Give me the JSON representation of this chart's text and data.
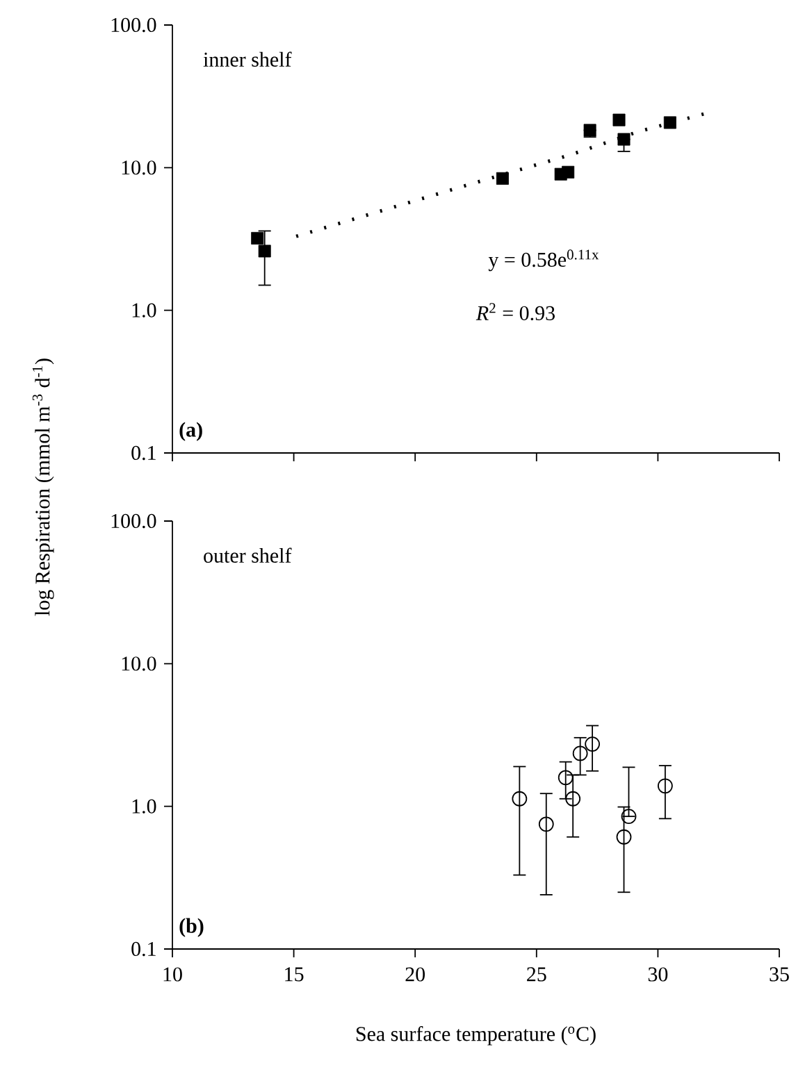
{
  "chart_data": [
    {
      "type": "scatter",
      "annotations": [
        "inner shelf",
        "(a)",
        "y = 0.58e$^{0.11x}$",
        "*R*$^{2}$ = 0.93"
      ],
      "xlim": [
        10,
        35
      ],
      "xticks": [
        10,
        15,
        20,
        25,
        30,
        35
      ],
      "ylim": [
        0.1,
        100
      ],
      "yticks": [
        {
          "value": 0.1,
          "label": "0.1"
        },
        {
          "value": 1,
          "label": "1.0"
        },
        {
          "value": 10,
          "label": "10.0"
        },
        {
          "value": 100,
          "label": "100.0"
        }
      ],
      "log": "y",
      "tick_labels": "y",
      "grid": false,
      "series": [
        {
          "marker": "square",
          "color": "#000000",
          "x": [
            13.5,
            13.8,
            23.6,
            26.0,
            26.3,
            27.2,
            28.4,
            28.6,
            30.5
          ],
          "values": [
            3.2,
            2.6,
            8.4,
            9.0,
            9.3,
            18.3,
            21.6,
            15.8,
            20.7
          ],
          "errors": [
            null,
            [
              1.5,
              3.6
            ],
            null,
            null,
            null,
            [
              16.4,
              18.3
            ],
            null,
            [
              13.0,
              15.8
            ],
            null
          ]
        },
        {
          "type": "line",
          "marker": "none",
          "line_style": "dotted",
          "color": "#000000",
          "x": [
            15.1,
            22.2,
            26.4,
            29.2,
            31.9
          ],
          "values": [
            3.3,
            7.6,
            12.3,
            17.9,
            23.8
          ]
        }
      ]
    },
    {
      "type": "scatter",
      "annotations": [
        "outer shelf",
        "(b)"
      ],
      "xlabel": "Sea surface temperature ($^{o}$C)",
      "ylabel": "log Respiration (mmol m$^{-3}$ d$^{-1}$)",
      "xlim": [
        10,
        35
      ],
      "xticks": [
        10,
        15,
        20,
        25,
        30,
        35
      ],
      "ylim": [
        0.1,
        100
      ],
      "yticks": [
        {
          "value": 0.1,
          "label": "0.1"
        },
        {
          "value": 1,
          "label": "1.0"
        },
        {
          "value": 10,
          "label": "10.0"
        },
        {
          "value": 100,
          "label": "100.0"
        }
      ],
      "log": "y",
      "grid": false,
      "series": [
        {
          "marker": "circle",
          "color": "#000000",
          "x": [
            24.3,
            25.4,
            26.2,
            26.5,
            26.8,
            27.3,
            28.6,
            28.8,
            30.3
          ],
          "values": [
            1.13,
            0.75,
            1.59,
            1.13,
            2.35,
            2.73,
            0.61,
            0.85,
            1.39
          ],
          "errors": [
            [
              0.33,
              1.9
            ],
            [
              0.24,
              1.23
            ],
            [
              1.13,
              2.05
            ],
            [
              0.61,
              1.66
            ],
            [
              1.66,
              3.03
            ],
            [
              1.77,
              3.68
            ],
            [
              0.25,
              0.99
            ],
            [
              0.85,
              1.88
            ],
            [
              0.82,
              1.93
            ]
          ]
        }
      ]
    }
  ]
}
